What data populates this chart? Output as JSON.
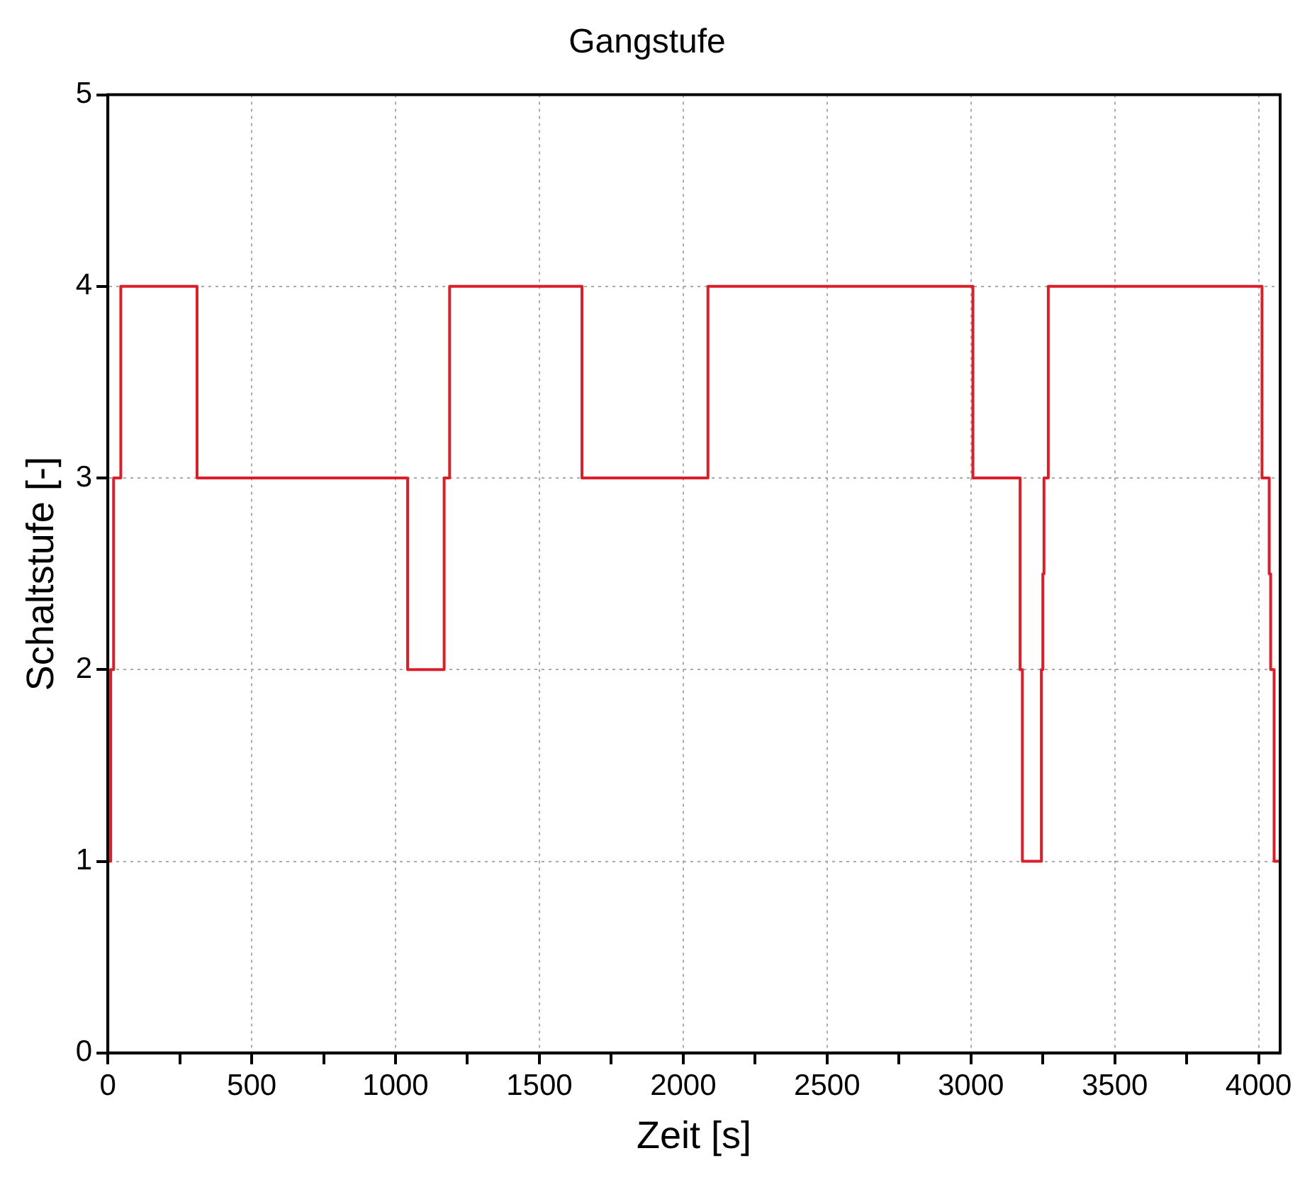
{
  "chart_data": {
    "type": "step",
    "title": "Gangstufe",
    "xlabel": "Zeit [s]",
    "ylabel": "Schaltstufe [-]",
    "x": [
      0,
      10,
      20,
      45,
      310,
      1042,
      1169,
      1188,
      1648,
      2086,
      3007,
      3171,
      3179,
      3245,
      3250,
      3254,
      3269,
      4012,
      4037,
      4042,
      4054,
      4070
    ],
    "series": [
      {
        "color": "#d9202a",
        "values": [
          1,
          2,
          3,
          4,
          3,
          2,
          3,
          4,
          3,
          4,
          3,
          2,
          1,
          2,
          2.5,
          3,
          4,
          3,
          2.5,
          2,
          1,
          1
        ]
      }
    ],
    "xlim": [
      0,
      4075
    ],
    "xticks": [
      0,
      {
        "value": 250,
        "label": null
      },
      500,
      {
        "value": 750,
        "label": null
      },
      1000,
      {
        "value": 1250,
        "label": null
      },
      1500,
      {
        "value": 1750,
        "label": null
      },
      2000,
      {
        "value": 2250,
        "label": null
      },
      2500,
      {
        "value": 2750,
        "label": null
      },
      3000,
      {
        "value": 3250,
        "label": null
      },
      3500,
      {
        "value": 3750,
        "label": null
      },
      4000
    ],
    "ylim": [
      0,
      5
    ],
    "yticks": [
      0,
      1,
      2,
      3,
      4,
      5
    ],
    "grid": true,
    "legend": false,
    "marker": "none",
    "line_style": "solid"
  }
}
